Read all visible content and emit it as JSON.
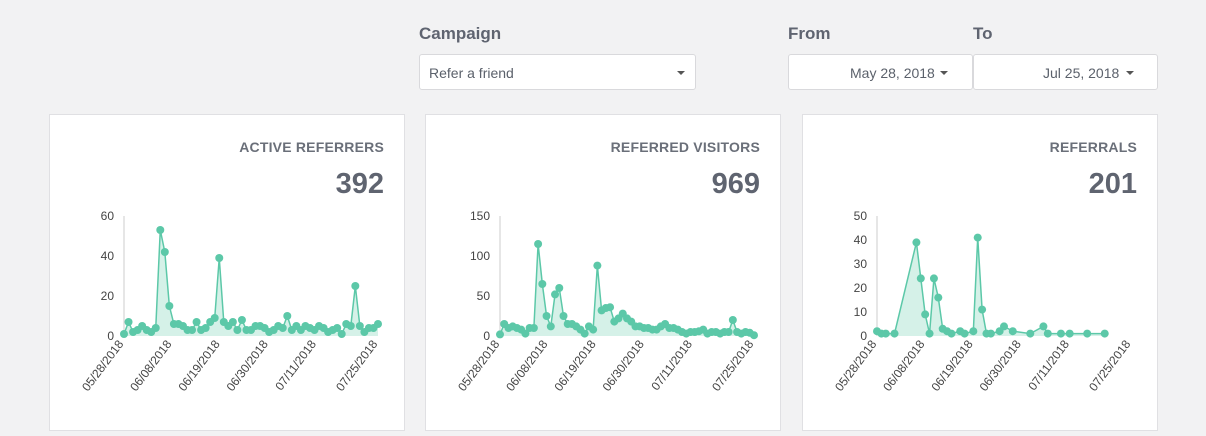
{
  "filters": {
    "campaign_label": "Campaign",
    "campaign_value": "Refer a friend",
    "from_label": "From",
    "from_value": "May 28, 2018",
    "to_label": "To",
    "to_value": "Jul 25, 2018"
  },
  "cards": [
    {
      "title": "ACTIVE REFERRERS",
      "total": "392"
    },
    {
      "title": "REFERRED VISITORS",
      "total": "969"
    },
    {
      "title": "REFERRALS",
      "total": "201"
    }
  ],
  "colors": {
    "accent": "#5cc8a8",
    "fill": "#d5f1e8",
    "axis": "#cccccc"
  },
  "chart_data": [
    {
      "type": "line",
      "title": "ACTIVE REFERRERS",
      "x_tick_labels": [
        "05/28/2018",
        "06/08/2018",
        "06/19/2018",
        "06/30/2018",
        "07/11/2018",
        "07/25/2018"
      ],
      "x_range": [
        "2018-05-28",
        "2018-07-25"
      ],
      "ylim": [
        0,
        60
      ],
      "y_ticks": [
        0,
        20,
        40,
        60
      ],
      "series": [
        {
          "values": [
            1,
            7,
            2,
            3,
            5,
            3,
            2,
            4,
            53,
            42,
            15,
            6,
            6,
            5,
            3,
            3,
            7,
            3,
            4,
            7,
            9,
            39,
            7,
            5,
            7,
            3,
            8,
            3,
            3,
            5,
            5,
            4,
            2,
            3,
            5,
            4,
            10,
            3,
            5,
            3,
            5,
            4,
            3,
            5,
            4,
            2,
            3,
            4,
            1,
            6,
            5,
            25,
            5,
            2,
            4,
            4,
            6
          ]
        }
      ]
    },
    {
      "type": "line",
      "title": "REFERRED VISITORS",
      "x_tick_labels": [
        "05/28/2018",
        "06/08/2018",
        "06/19/2018",
        "06/30/2018",
        "07/11/2018",
        "07/25/2018"
      ],
      "x_range": [
        "2018-05-28",
        "2018-07-25"
      ],
      "ylim": [
        0,
        150
      ],
      "y_ticks": [
        0,
        50,
        100,
        150
      ],
      "series": [
        {
          "values": [
            2,
            15,
            10,
            12,
            10,
            8,
            3,
            10,
            10,
            115,
            65,
            25,
            12,
            52,
            60,
            25,
            15,
            15,
            12,
            8,
            3,
            12,
            8,
            88,
            32,
            35,
            36,
            18,
            22,
            28,
            22,
            18,
            12,
            12,
            10,
            10,
            8,
            8,
            12,
            15,
            10,
            10,
            8,
            5,
            3,
            5,
            5,
            6,
            8,
            3,
            5,
            5,
            3,
            5,
            5,
            20,
            5,
            3,
            5,
            4,
            1
          ]
        }
      ]
    },
    {
      "type": "line",
      "title": "REFERRALS",
      "x_tick_labels": [
        "05/28/2018",
        "06/08/2018",
        "06/19/2018",
        "06/30/2018",
        "07/11/2018",
        "07/25/2018"
      ],
      "x_range": [
        "2018-05-28",
        "2018-07-25"
      ],
      "ylim": [
        0,
        50
      ],
      "y_ticks": [
        0,
        10,
        20,
        30,
        40,
        50
      ],
      "series": [
        {
          "points": [
            [
              0,
              2
            ],
            [
              1,
              1
            ],
            [
              2,
              1
            ],
            [
              4,
              1
            ],
            [
              9,
              39
            ],
            [
              10,
              24
            ],
            [
              11,
              9
            ],
            [
              12,
              1
            ],
            [
              13,
              24
            ],
            [
              14,
              16
            ],
            [
              15,
              3
            ],
            [
              16,
              2
            ],
            [
              17,
              1
            ],
            [
              19,
              2
            ],
            [
              20,
              1
            ],
            [
              22,
              2
            ],
            [
              23,
              41
            ],
            [
              24,
              11
            ],
            [
              25,
              1
            ],
            [
              26,
              1
            ],
            [
              28,
              2
            ],
            [
              29,
              4
            ],
            [
              31,
              2
            ],
            [
              35,
              1
            ],
            [
              38,
              4
            ],
            [
              39,
              1
            ],
            [
              42,
              1
            ],
            [
              44,
              1
            ],
            [
              48,
              1
            ],
            [
              52,
              1
            ]
          ]
        }
      ]
    }
  ]
}
